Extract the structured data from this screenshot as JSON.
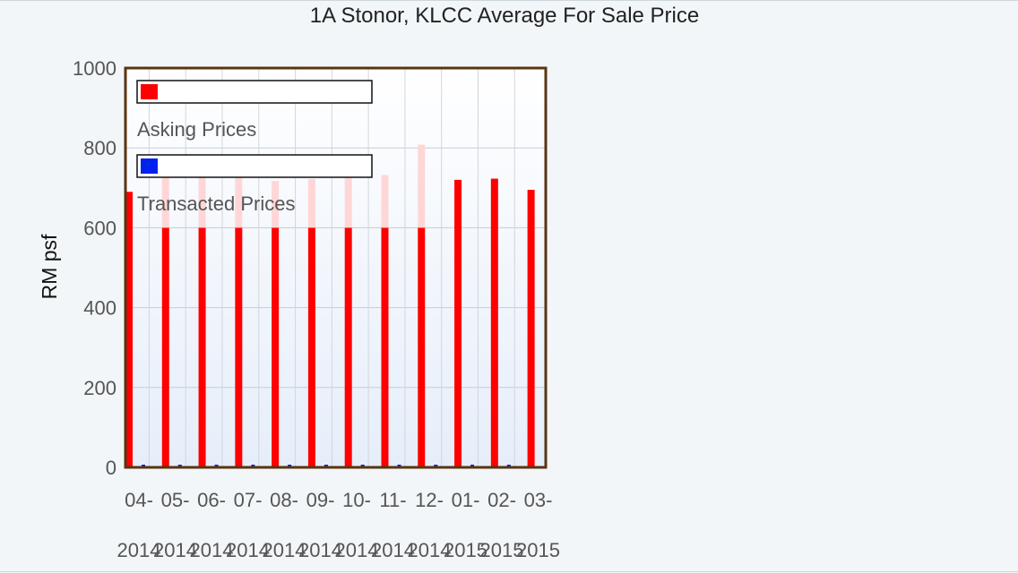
{
  "chart_data": {
    "type": "bar",
    "title": "1A Stonor, KLCC Average For Sale Price",
    "xlabel": "",
    "ylabel": "RM psf",
    "ylim": [
      0,
      1000
    ],
    "yticks": [
      0,
      200,
      400,
      600,
      800,
      1000
    ],
    "grid": true,
    "legend_placement": "top-left",
    "categories": [
      "04-2014",
      "05-2014",
      "06-2014",
      "07-2014",
      "08-2014",
      "09-2014",
      "10-2014",
      "11-2014",
      "12-2014",
      "01-2015",
      "02-2015",
      "03-2015"
    ],
    "tick_labels_line1": [
      "04-",
      "05-",
      "06-",
      "07-",
      "08-",
      "09-",
      "10-",
      "11-",
      "12-",
      "01-",
      "02-",
      "03-"
    ],
    "tick_labels_line2": [
      "2014",
      "2014",
      "2014",
      "2014",
      "2014",
      "2014",
      "2014",
      "2014",
      "2014",
      "2015",
      "2015",
      "2015"
    ],
    "series": [
      {
        "name": "Asking Prices",
        "color": "#ff0000",
        "values": [
          690,
          600,
          600,
          600,
          600,
          600,
          600,
          600,
          600,
          720,
          723,
          695
        ],
        "highlight_values": [
          null,
          758,
          775,
          727,
          717,
          722,
          740,
          732,
          808,
          null,
          null,
          null
        ]
      },
      {
        "name": "Transacted Prices",
        "color": "#0022ee",
        "values": [
          0,
          0,
          0,
          0,
          0,
          0,
          0,
          0,
          0,
          0,
          0,
          0
        ]
      }
    ]
  }
}
